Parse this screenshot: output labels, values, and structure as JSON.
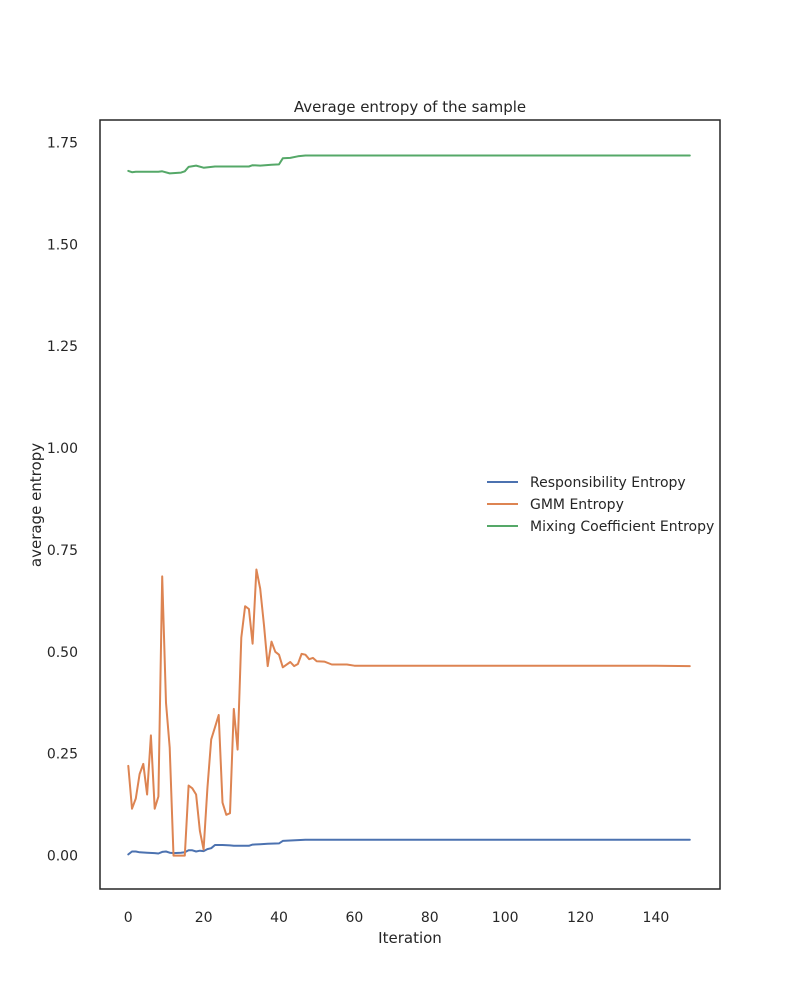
{
  "chart_data": {
    "type": "line",
    "title": "Average entropy of the sample",
    "xlabel": "Iteration",
    "ylabel": "average entropy",
    "xlim": [
      -7.5,
      157
    ],
    "ylim": [
      -0.082,
      1.805
    ],
    "xticks": [
      0,
      20,
      40,
      60,
      80,
      100,
      120,
      140
    ],
    "yticks": [
      0.0,
      0.25,
      0.5,
      0.75,
      1.0,
      1.25,
      1.5,
      1.75
    ],
    "ytick_labels": [
      "0.00",
      "0.25",
      "0.50",
      "0.75",
      "1.00",
      "1.25",
      "1.50",
      "1.75"
    ],
    "grid": false,
    "legend_position": "center-right",
    "series": [
      {
        "name": "Responsibility Entropy",
        "color": "#4c72b0",
        "points": [
          [
            0,
            0.003
          ],
          [
            1,
            0.01
          ],
          [
            2,
            0.01
          ],
          [
            3,
            0.008
          ],
          [
            5,
            0.007
          ],
          [
            7,
            0.006
          ],
          [
            8,
            0.005
          ],
          [
            9,
            0.009
          ],
          [
            10,
            0.01
          ],
          [
            11,
            0.007
          ],
          [
            12,
            0.006
          ],
          [
            14,
            0.007
          ],
          [
            15,
            0.008
          ],
          [
            16,
            0.013
          ],
          [
            17,
            0.013
          ],
          [
            18,
            0.01
          ],
          [
            19,
            0.012
          ],
          [
            20,
            0.011
          ],
          [
            21,
            0.016
          ],
          [
            22,
            0.018
          ],
          [
            23,
            0.026
          ],
          [
            25,
            0.026
          ],
          [
            27,
            0.025
          ],
          [
            28,
            0.024
          ],
          [
            30,
            0.024
          ],
          [
            32,
            0.024
          ],
          [
            33,
            0.027
          ],
          [
            35,
            0.028
          ],
          [
            37,
            0.029
          ],
          [
            40,
            0.03
          ],
          [
            41,
            0.036
          ],
          [
            43,
            0.037
          ],
          [
            45,
            0.038
          ],
          [
            47,
            0.039
          ],
          [
            50,
            0.039
          ],
          [
            60,
            0.039
          ],
          [
            80,
            0.039
          ],
          [
            100,
            0.039
          ],
          [
            120,
            0.039
          ],
          [
            140,
            0.039
          ],
          [
            149,
            0.039
          ]
        ]
      },
      {
        "name": "GMM Entropy",
        "color": "#dd8452",
        "points": [
          [
            0,
            0.22
          ],
          [
            1,
            0.115
          ],
          [
            2,
            0.14
          ],
          [
            3,
            0.2
          ],
          [
            4,
            0.225
          ],
          [
            5,
            0.15
          ],
          [
            6,
            0.295
          ],
          [
            7,
            0.115
          ],
          [
            8,
            0.145
          ],
          [
            9,
            0.685
          ],
          [
            10,
            0.375
          ],
          [
            11,
            0.265
          ],
          [
            12,
            0.0
          ],
          [
            13,
            0.0
          ],
          [
            14,
            0.0
          ],
          [
            15,
            0.0
          ],
          [
            16,
            0.172
          ],
          [
            17,
            0.165
          ],
          [
            18,
            0.15
          ],
          [
            19,
            0.06
          ],
          [
            20,
            0.015
          ],
          [
            21,
            0.165
          ],
          [
            22,
            0.285
          ],
          [
            23,
            0.315
          ],
          [
            24,
            0.345
          ],
          [
            25,
            0.13
          ],
          [
            26,
            0.1
          ],
          [
            27,
            0.104
          ],
          [
            28,
            0.36
          ],
          [
            29,
            0.26
          ],
          [
            30,
            0.535
          ],
          [
            31,
            0.612
          ],
          [
            32,
            0.605
          ],
          [
            33,
            0.52
          ],
          [
            34,
            0.702
          ],
          [
            35,
            0.655
          ],
          [
            36,
            0.565
          ],
          [
            37,
            0.465
          ],
          [
            38,
            0.525
          ],
          [
            39,
            0.5
          ],
          [
            40,
            0.493
          ],
          [
            41,
            0.462
          ],
          [
            43,
            0.475
          ],
          [
            44,
            0.465
          ],
          [
            45,
            0.47
          ],
          [
            46,
            0.495
          ],
          [
            47,
            0.493
          ],
          [
            48,
            0.482
          ],
          [
            49,
            0.485
          ],
          [
            50,
            0.477
          ],
          [
            52,
            0.476
          ],
          [
            54,
            0.469
          ],
          [
            56,
            0.469
          ],
          [
            58,
            0.469
          ],
          [
            60,
            0.466
          ],
          [
            80,
            0.466
          ],
          [
            100,
            0.466
          ],
          [
            120,
            0.466
          ],
          [
            140,
            0.466
          ],
          [
            149,
            0.465
          ]
        ]
      },
      {
        "name": "Mixing Coefficient Entropy",
        "color": "#55a868",
        "points": [
          [
            0,
            1.68
          ],
          [
            1,
            1.677
          ],
          [
            2,
            1.678
          ],
          [
            4,
            1.678
          ],
          [
            6,
            1.678
          ],
          [
            8,
            1.678
          ],
          [
            9,
            1.679
          ],
          [
            11,
            1.674
          ],
          [
            14,
            1.676
          ],
          [
            15,
            1.679
          ],
          [
            16,
            1.69
          ],
          [
            18,
            1.693
          ],
          [
            20,
            1.688
          ],
          [
            23,
            1.691
          ],
          [
            25,
            1.691
          ],
          [
            28,
            1.691
          ],
          [
            32,
            1.691
          ],
          [
            33,
            1.694
          ],
          [
            35,
            1.693
          ],
          [
            38,
            1.695
          ],
          [
            40,
            1.696
          ],
          [
            41,
            1.711
          ],
          [
            43,
            1.712
          ],
          [
            45,
            1.716
          ],
          [
            47,
            1.718
          ],
          [
            50,
            1.718
          ],
          [
            60,
            1.718
          ],
          [
            80,
            1.718
          ],
          [
            100,
            1.718
          ],
          [
            120,
            1.718
          ],
          [
            140,
            1.718
          ],
          [
            149,
            1.718
          ]
        ]
      }
    ]
  }
}
